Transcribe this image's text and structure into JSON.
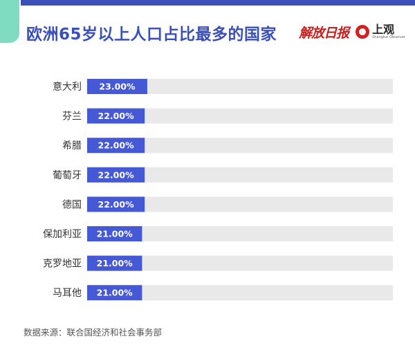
{
  "header": {
    "title": "欧洲65岁以上人口占比最多的国家",
    "logo_left": "解放日报",
    "logo_right_cn": "上观",
    "logo_right_en": "Shanghai Observer"
  },
  "footer": {
    "source": "数据来源：联合国经济和社会事务部"
  },
  "colors": {
    "bar": "#4559d6",
    "track": "#e9e9e9",
    "title": "#3a4fb8",
    "accent_band": "#3a4fb8",
    "corner_tab": "#7fdcc0"
  },
  "chart_data": {
    "type": "bar",
    "orientation": "horizontal",
    "title": "欧洲65岁以上人口占比最多的国家",
    "xlabel": "",
    "ylabel": "",
    "xlim": [
      0,
      100
    ],
    "grid": false,
    "legend": "none",
    "categories": [
      "意大利",
      "芬兰",
      "希腊",
      "葡萄牙",
      "德国",
      "保加利亚",
      "克罗地亚",
      "马耳他"
    ],
    "values": [
      23,
      22,
      22,
      22,
      22,
      21,
      21,
      21
    ],
    "data_labels": [
      "23.00%",
      "22.00%",
      "22.00%",
      "22.00%",
      "22.00%",
      "21.00%",
      "21.00%",
      "21.00%"
    ]
  }
}
